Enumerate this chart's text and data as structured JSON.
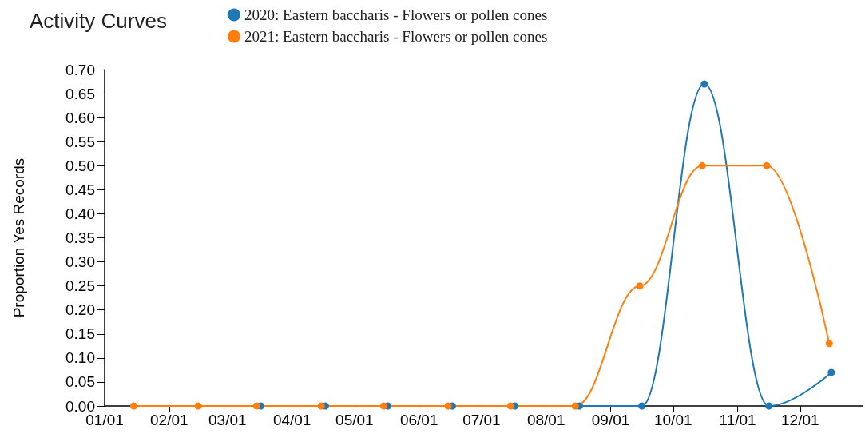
{
  "chart_data": {
    "type": "line",
    "title": "Activity Curves",
    "ylabel": "Proportion Yes Records",
    "x": [
      "--01-15",
      "--02-15",
      "--03-15",
      "--04-15",
      "--05-15",
      "--06-15",
      "--07-15",
      "--08-15",
      "--09-15",
      "--10-15",
      "--11-15",
      "--12-15"
    ],
    "series": [
      {
        "name": "2020: Eastern baccharis - Flowers or pollen cones",
        "color": "#1f77b4",
        "x": [
          "--03-17",
          "--04-17",
          "--05-17",
          "--06-17",
          "--07-17",
          "--08-17",
          "--09-16",
          "--10-16",
          "--11-16",
          "--12-16"
        ],
        "values": [
          0,
          0,
          0,
          0,
          0,
          0,
          0,
          0.67,
          0,
          0.07
        ]
      },
      {
        "name": "2021: Eastern baccharis - Flowers or pollen cones",
        "color": "#ff7f0e",
        "values": [
          0,
          0,
          0,
          0,
          0,
          0,
          0,
          0,
          0.25,
          0.5,
          0.5,
          0.13
        ]
      }
    ],
    "xlim": [
      "--01-01",
      "--12-31"
    ],
    "xticks": [
      {
        "value": "--01-01",
        "label": "01/01"
      },
      {
        "value": "--02-01",
        "label": "02/01"
      },
      {
        "value": "--03-01",
        "label": "03/01"
      },
      {
        "value": "--04-01",
        "label": "04/01"
      },
      {
        "value": "--05-01",
        "label": "05/01"
      },
      {
        "value": "--06-01",
        "label": "06/01"
      },
      {
        "value": "--07-01",
        "label": "07/01"
      },
      {
        "value": "--08-01",
        "label": "08/01"
      },
      {
        "value": "--09-01",
        "label": "09/01"
      },
      {
        "value": "--10-01",
        "label": "10/01"
      },
      {
        "value": "--11-01",
        "label": "11/01"
      },
      {
        "value": "--12-01",
        "label": "12/01"
      }
    ],
    "ylim": [
      0,
      0.7
    ],
    "yticks": [
      {
        "value": 0,
        "label": "0.00"
      },
      {
        "value": 0.05,
        "label": "0.05"
      },
      {
        "value": 0.1,
        "label": "0.10"
      },
      {
        "value": 0.15,
        "label": "0.15"
      },
      {
        "value": 0.2,
        "label": "0.20"
      },
      {
        "value": 0.25,
        "label": "0.25"
      },
      {
        "value": 0.3,
        "label": "0.30"
      },
      {
        "value": 0.35,
        "label": "0.35"
      },
      {
        "value": 0.4,
        "label": "0.40"
      },
      {
        "value": 0.45,
        "label": "0.45"
      },
      {
        "value": 0.5,
        "label": "0.50"
      },
      {
        "value": 0.55,
        "label": "0.55"
      },
      {
        "value": 0.6,
        "label": "0.60"
      },
      {
        "value": 0.65,
        "label": "0.65"
      },
      {
        "value": 0.7,
        "label": "0.70"
      }
    ],
    "grid": false,
    "legend": "top",
    "marker": "circle",
    "line_style": "solid"
  }
}
